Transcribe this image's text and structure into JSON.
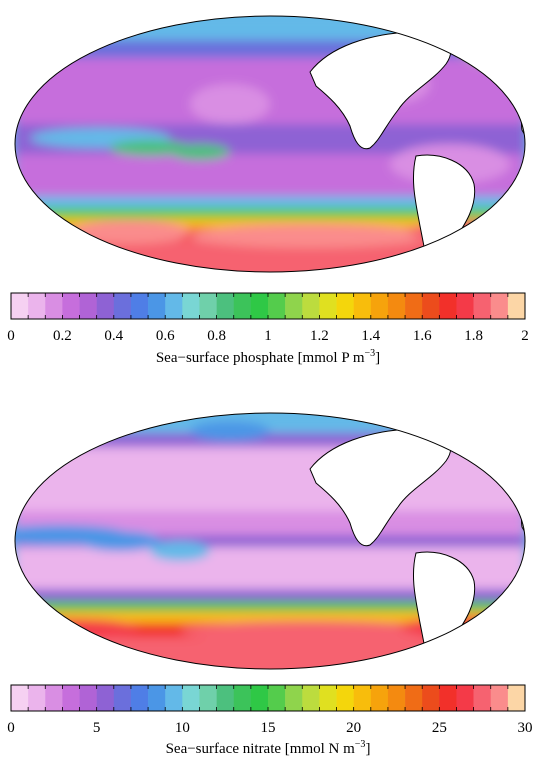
{
  "colormap": [
    "#f6d1f2",
    "#ebb4ec",
    "#d98ee3",
    "#c66edc",
    "#b063d6",
    "#8e62d4",
    "#6b6fdc",
    "#4f7ee6",
    "#4b96e6",
    "#63b9e8",
    "#79d6d4",
    "#6fd0aa",
    "#4cc07e",
    "#3cc35a",
    "#2fc846",
    "#54cc4c",
    "#8fd44c",
    "#bcdc3e",
    "#e0e020",
    "#f4d60c",
    "#f8bd0c",
    "#f6a30c",
    "#f48a10",
    "#f06c16",
    "#ec4c1c",
    "#f2302a",
    "#f43a48",
    "#f66270",
    "#fa8c8c",
    "#fcd6a6"
  ],
  "land_color": "#ffffff",
  "maps": [
    {
      "variable": "phosphate",
      "colorbar": {
        "ticks": [
          "0",
          "0.2",
          "0.4",
          "0.6",
          "0.8",
          "1",
          "1.2",
          "1.4",
          "1.6",
          "1.8",
          "2"
        ],
        "label_main": "Sea−surface phosphate [mmol P m",
        "label_sup": "−3",
        "label_end": "]"
      }
    },
    {
      "variable": "nitrate",
      "colorbar": {
        "ticks": [
          "0",
          "5",
          "10",
          "15",
          "20",
          "25",
          "30"
        ],
        "label_main": "Sea−surface nitrate [mmol N m",
        "label_sup": "−3",
        "label_end": "]"
      }
    }
  ]
}
